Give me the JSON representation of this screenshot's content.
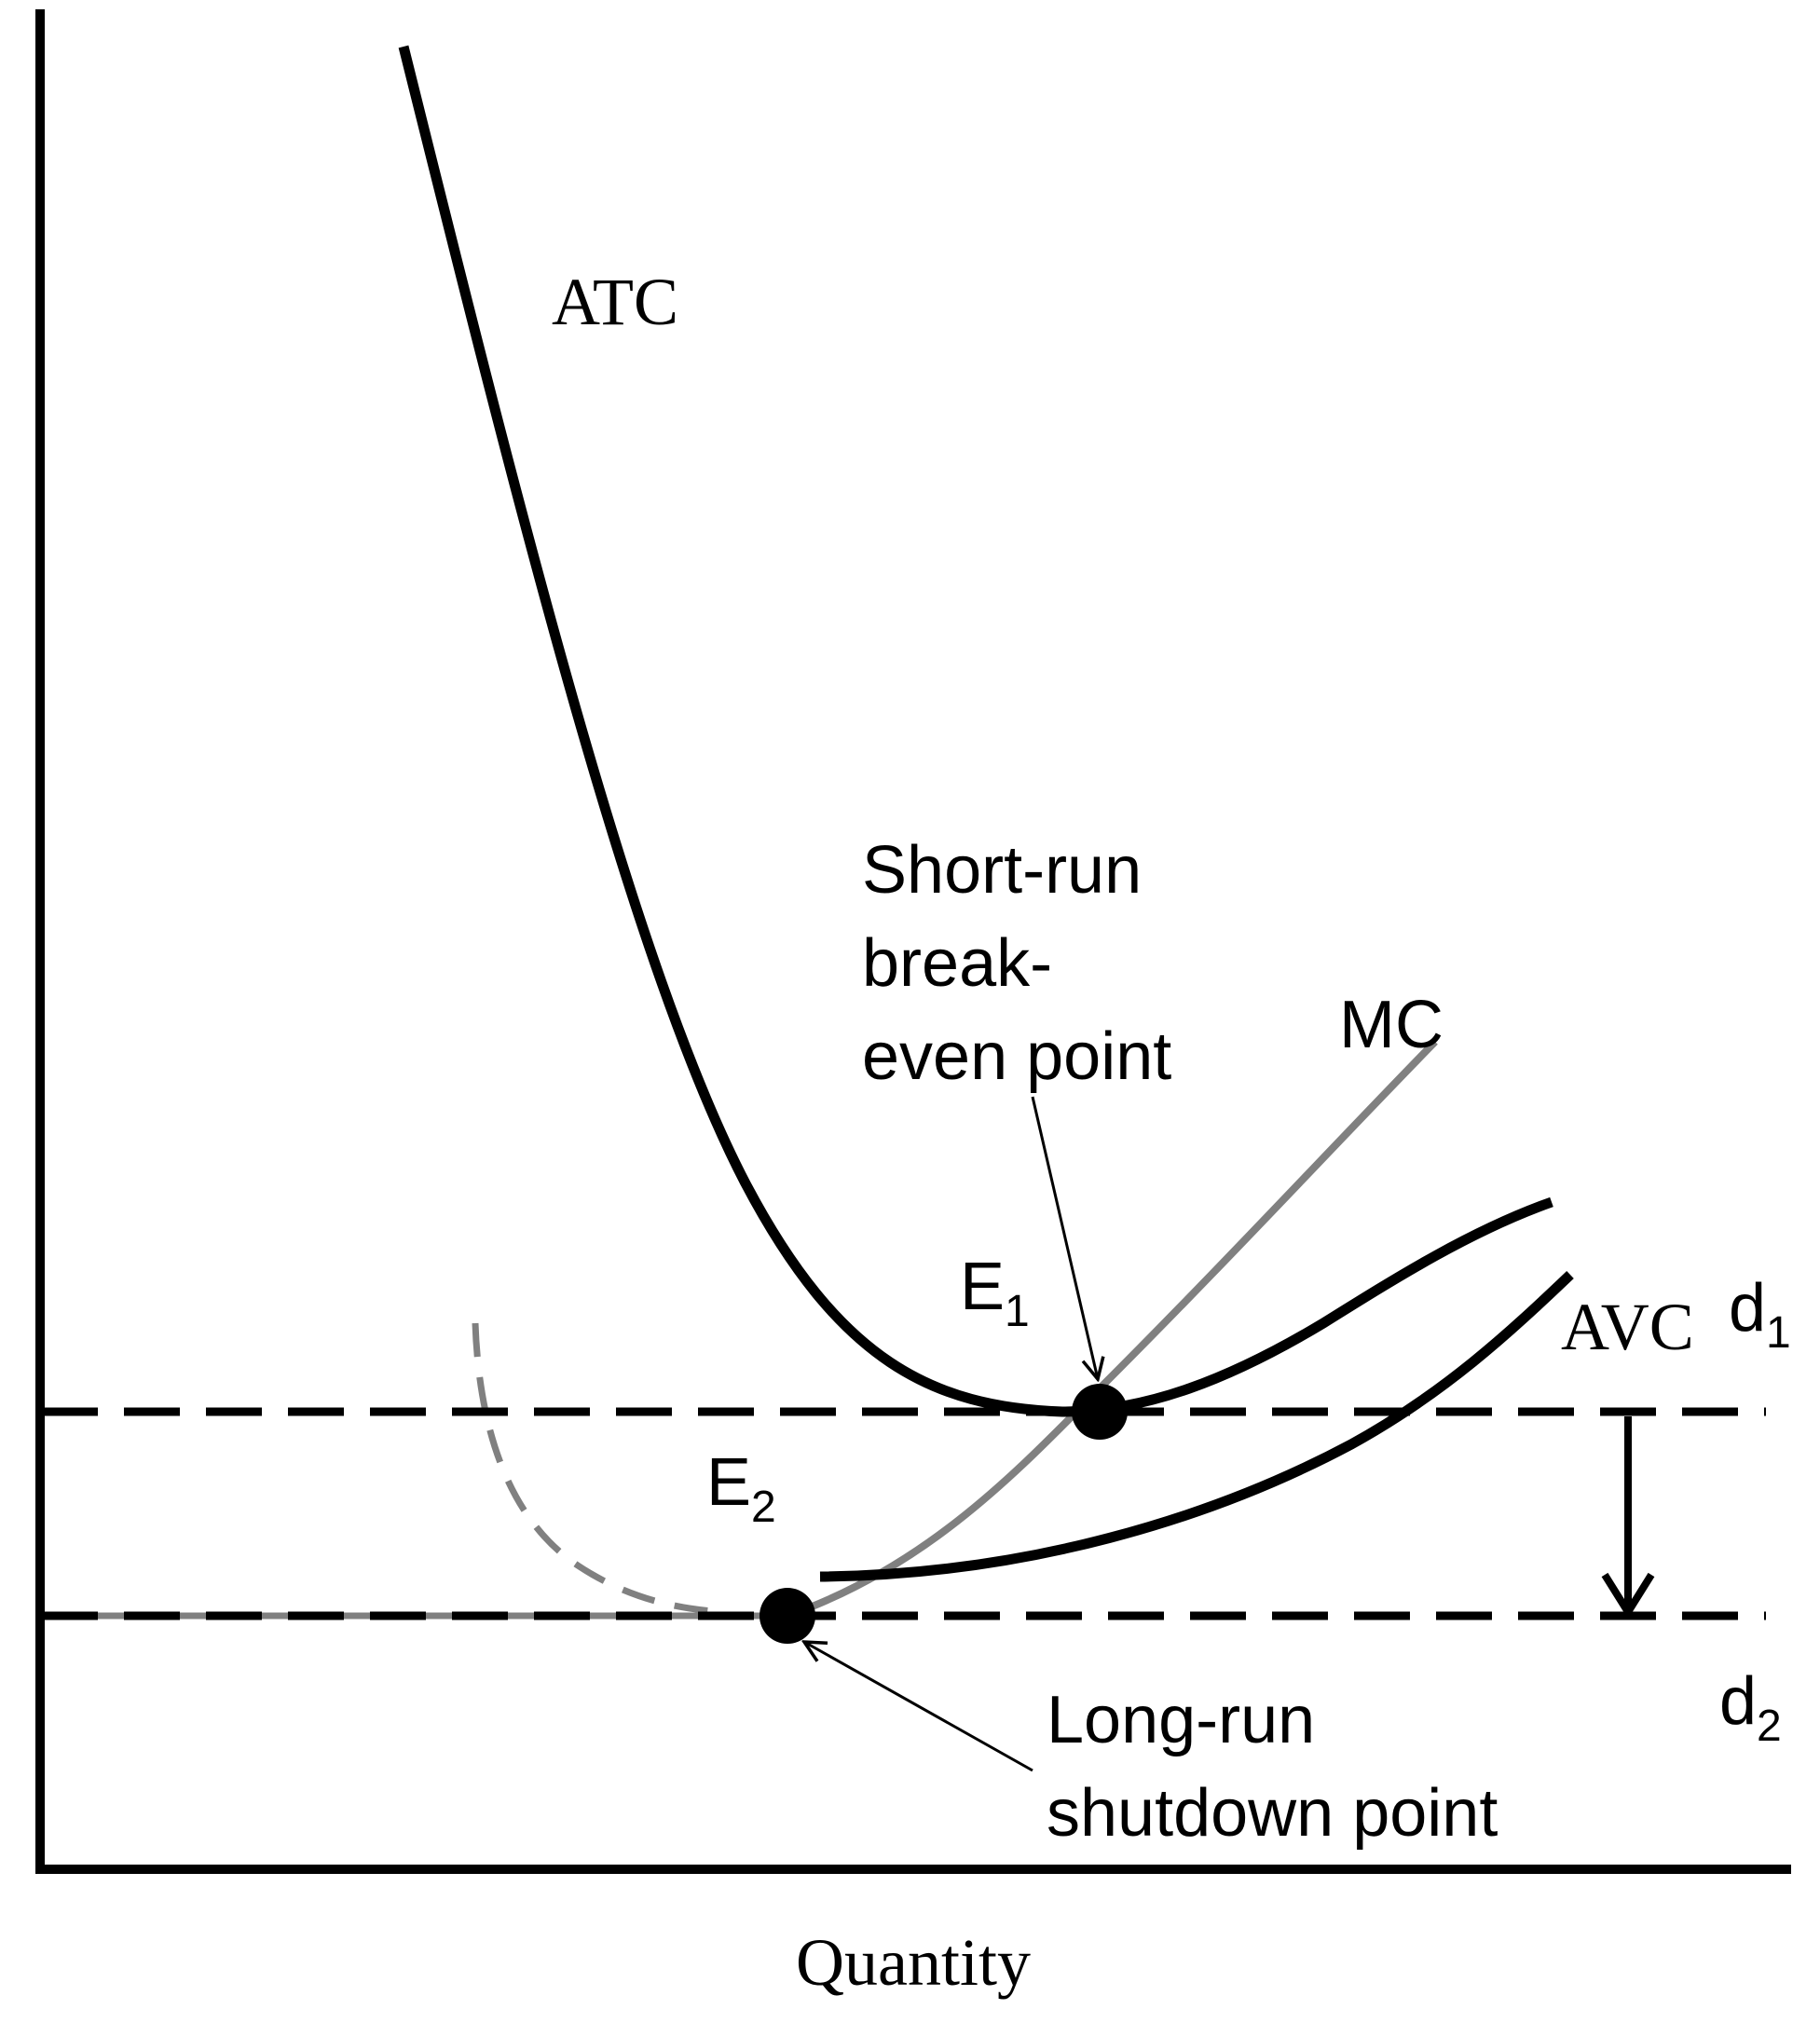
{
  "diagram": {
    "x_axis_label": "Quantity",
    "curves": {
      "atc": "ATC",
      "mc": "MC",
      "avc": "AVC"
    },
    "demand_lines": {
      "d1": {
        "letter": "d",
        "sub": "1"
      },
      "d2": {
        "letter": "d",
        "sub": "2"
      }
    },
    "equilibria": {
      "e1": {
        "letter": "E",
        "sub": "1"
      },
      "e2": {
        "letter": "E",
        "sub": "2"
      }
    },
    "annotations": {
      "break_even": [
        "Short-run",
        "break-",
        "even point"
      ],
      "shutdown": [
        "Long-run",
        "shutdown point"
      ]
    },
    "colors": {
      "primary": "#000000",
      "mc_curve": "#808080"
    }
  }
}
